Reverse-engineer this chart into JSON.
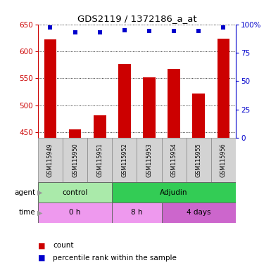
{
  "title": "GDS2119 / 1372186_a_at",
  "samples": [
    "GSM115949",
    "GSM115950",
    "GSM115951",
    "GSM115952",
    "GSM115953",
    "GSM115954",
    "GSM115955",
    "GSM115956"
  ],
  "bar_values": [
    622,
    456,
    481,
    576,
    552,
    568,
    522,
    624
  ],
  "percentile_values": [
    97,
    93,
    93,
    95,
    94,
    94,
    94,
    97
  ],
  "bar_color": "#cc0000",
  "dot_color": "#0000cc",
  "ylim_left": [
    440,
    650
  ],
  "ylim_right": [
    0,
    100
  ],
  "yticks_left": [
    450,
    500,
    550,
    600,
    650
  ],
  "yticks_right": [
    0,
    25,
    50,
    75,
    100
  ],
  "agent_labels": [
    {
      "label": "control",
      "start": 0,
      "end": 3,
      "color": "#aaeaaa"
    },
    {
      "label": "Adjudin",
      "start": 3,
      "end": 8,
      "color": "#33cc55"
    }
  ],
  "time_labels": [
    {
      "label": "0 h",
      "start": 0,
      "end": 3,
      "color": "#ee99ee"
    },
    {
      "label": "8 h",
      "start": 3,
      "end": 5,
      "color": "#ee99ee"
    },
    {
      "label": "4 days",
      "start": 5,
      "end": 8,
      "color": "#cc66cc"
    }
  ],
  "legend_count_color": "#cc0000",
  "legend_dot_color": "#0000cc",
  "left_tick_color": "#cc0000",
  "right_tick_color": "#0000cc",
  "sample_box_color": "#d3d3d3",
  "grid_color": "#000000",
  "bar_bottom": 440
}
